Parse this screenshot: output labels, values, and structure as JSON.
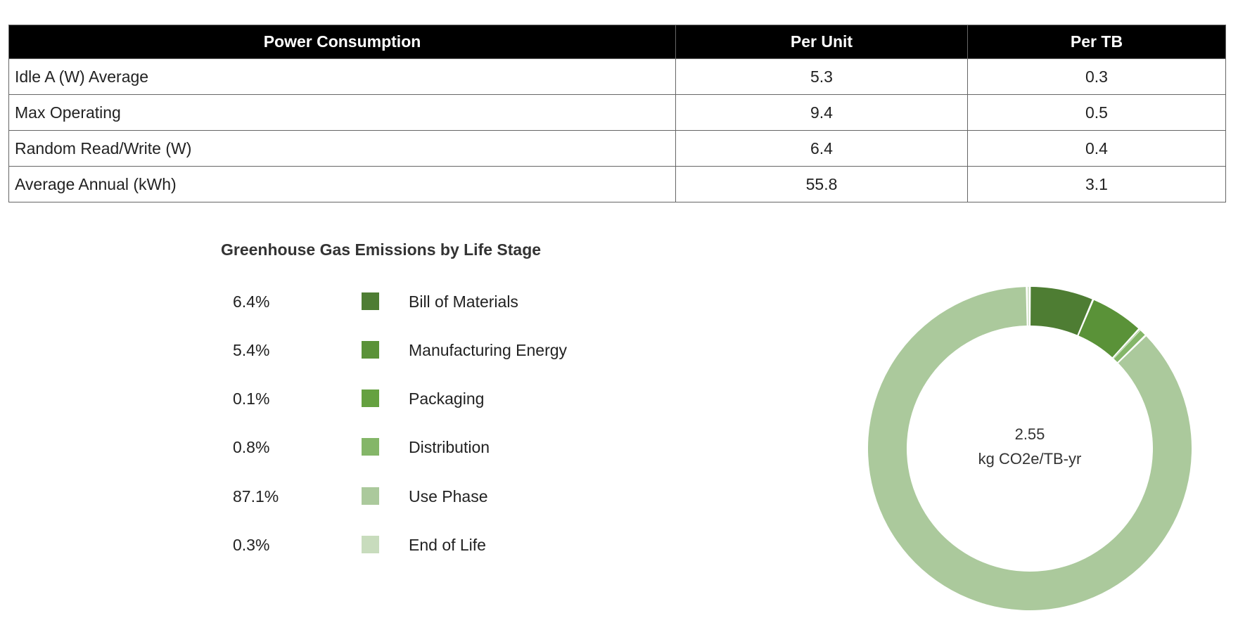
{
  "table": {
    "headers": [
      "Power Consumption",
      "Per Unit",
      "Per TB"
    ],
    "rows": [
      {
        "label": "Idle A (W) Average",
        "per_unit": "5.3",
        "per_tb": "0.3"
      },
      {
        "label": "Max Operating",
        "per_unit": "9.4",
        "per_tb": "0.5"
      },
      {
        "label": "Random Read/Write (W)",
        "per_unit": "6.4",
        "per_tb": "0.4"
      },
      {
        "label": "Average Annual (kWh)",
        "per_unit": "55.8",
        "per_tb": "3.1"
      }
    ]
  },
  "chart_data": {
    "type": "pie",
    "title": "Greenhouse Gas Emissions by Life Stage",
    "center_value": "2.55",
    "center_unit": "kg CO2e/TB-yr",
    "slices": [
      {
        "label": "Bill of Materials",
        "percent_text": "6.4%",
        "value": 6.4,
        "color": "#4e7d33"
      },
      {
        "label": "Manufacturing Energy",
        "percent_text": "5.4%",
        "value": 5.4,
        "color": "#5a9238"
      },
      {
        "label": "Packaging",
        "percent_text": "0.1%",
        "value": 0.1,
        "color": "#65a140"
      },
      {
        "label": "Distribution",
        "percent_text": "0.8%",
        "value": 0.8,
        "color": "#84b668"
      },
      {
        "label": "Use Phase",
        "percent_text": "87.1%",
        "value": 87.1,
        "color": "#abc99c"
      },
      {
        "label": "End of Life",
        "percent_text": "0.3%",
        "value": 0.3,
        "color": "#c8dcbd"
      }
    ],
    "legend_placement": "left"
  }
}
